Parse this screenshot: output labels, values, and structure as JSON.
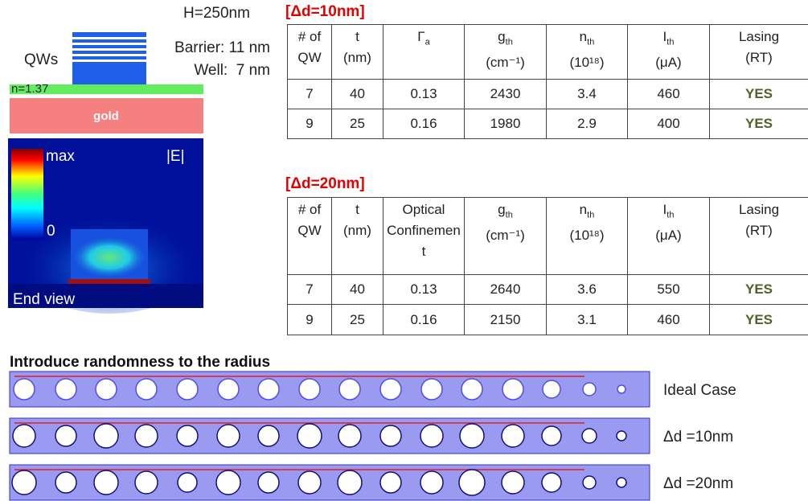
{
  "diagram": {
    "height_label": "H=250nm",
    "qw_label": "QWs",
    "barrier_label": "Barrier: 11 nm",
    "well_label": "Well:  7 nm",
    "index_label": "n=1.37",
    "substrate_label": "gold",
    "field": {
      "max_label": "max",
      "min_label": "0",
      "quantity_label": "|E|",
      "view_label": "End view"
    }
  },
  "tables": [
    {
      "title": "[Δd=10nm]",
      "header": [
        {
          "main": "# of QW"
        },
        {
          "main": "t",
          "unit": "(nm)"
        },
        {
          "main": "Γ",
          "sub": "a"
        },
        {
          "main": "g",
          "sub": "th",
          "unit": "(cm⁻¹)"
        },
        {
          "main": "n",
          "sub": "th",
          "unit": "(10¹⁸)"
        },
        {
          "main": "I",
          "sub": "th",
          "unit": "(μA)"
        },
        {
          "main": "Lasing",
          "unit": "(RT)"
        }
      ],
      "rows": [
        [
          7,
          40,
          0.13,
          2430,
          3.4,
          460,
          "YES"
        ],
        [
          9,
          25,
          0.16,
          1980,
          2.9,
          400,
          "YES"
        ]
      ]
    },
    {
      "title": "[Δd=20nm]",
      "header": [
        {
          "main": "# of QW"
        },
        {
          "main": "t",
          "unit": "(nm)"
        },
        {
          "main": "Optical Confinement"
        },
        {
          "main": "g",
          "sub": "th",
          "unit": "(cm⁻¹)"
        },
        {
          "main": "n",
          "sub": "th",
          "unit": "(10¹⁸)"
        },
        {
          "main": "I",
          "sub": "th",
          "unit": "(μA)"
        },
        {
          "main": "Lasing",
          "unit": "(RT)"
        }
      ],
      "rows": [
        [
          7,
          40,
          0.13,
          2640,
          3.6,
          550,
          "YES"
        ],
        [
          9,
          25,
          0.16,
          2150,
          3.1,
          460,
          "YES"
        ]
      ]
    }
  ],
  "waveguides": {
    "title": "Introduce randomness to the radius",
    "rows": [
      {
        "label": "Ideal Case"
      },
      {
        "label": "Δd =10nm"
      },
      {
        "label": "Δd =20nm"
      }
    ]
  }
}
